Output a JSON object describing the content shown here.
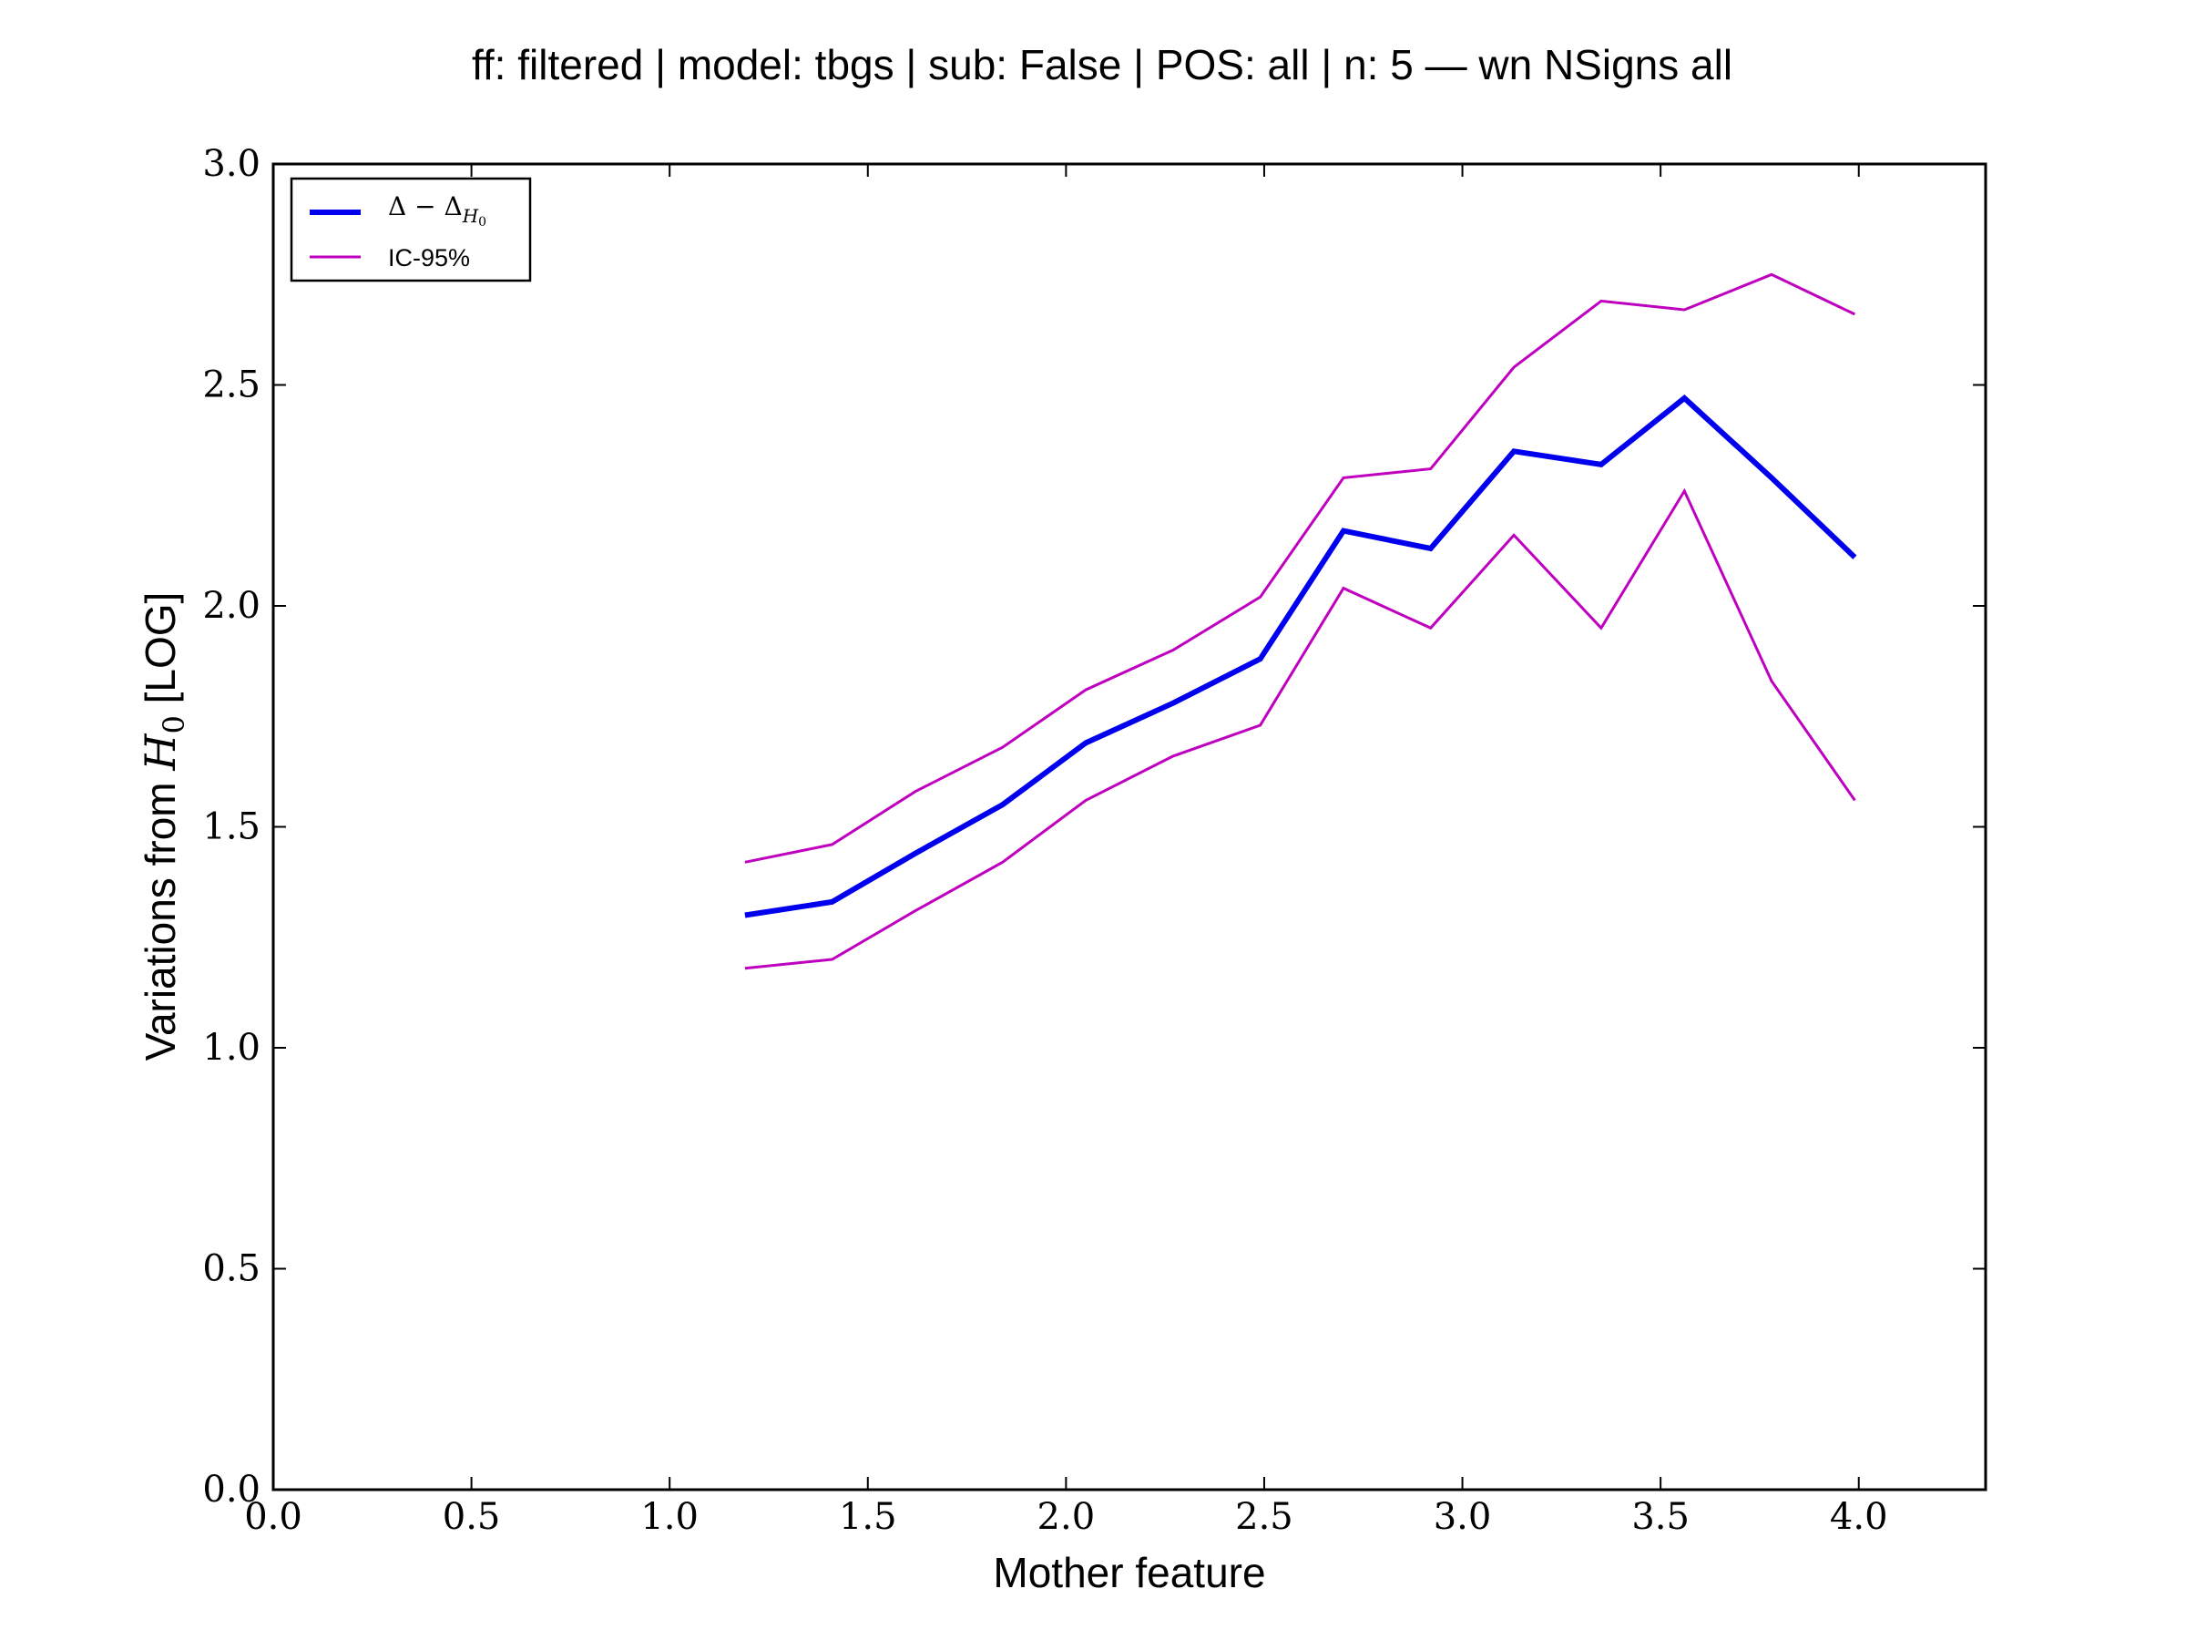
{
  "chart_data": {
    "type": "line",
    "title": "ff: filtered | model: tbgs | sub: False | POS: all | n: 5 — wn NSigns all",
    "xlabel": "Mother feature",
    "ylabel_prefix": "Variations from ",
    "ylabel_symbol": "H",
    "ylabel_subscript": "0",
    "ylabel_suffix": " [LOG]",
    "xlim": [
      0.0,
      4.32
    ],
    "ylim": [
      0.0,
      3.0
    ],
    "xticks": [
      0.0,
      0.5,
      1.0,
      1.5,
      2.0,
      2.5,
      3.0,
      3.5,
      4.0
    ],
    "xtick_labels": [
      "0.0",
      "0.5",
      "1.0",
      "1.5",
      "2.0",
      "2.5",
      "3.0",
      "3.5",
      "4.0"
    ],
    "yticks": [
      0.0,
      0.5,
      1.0,
      1.5,
      2.0,
      2.5,
      3.0
    ],
    "ytick_labels": [
      "0.0",
      "0.5",
      "1.0",
      "1.5",
      "2.0",
      "2.5",
      "3.0"
    ],
    "grid": false,
    "legend_position": "top-left",
    "x": [
      1.19,
      1.41,
      1.62,
      1.84,
      2.05,
      2.27,
      2.49,
      2.7,
      2.92,
      3.13,
      3.35,
      3.56,
      3.78,
      3.99
    ],
    "series": [
      {
        "legend_base": "Δ − Δ",
        "legend_subscript": "H",
        "legend_subsubscript": "0",
        "color": "#0000ee",
        "width": 6,
        "values": [
          1.3,
          1.33,
          1.44,
          1.55,
          1.69,
          1.78,
          1.88,
          2.17,
          2.13,
          2.35,
          2.32,
          2.47,
          2.29,
          2.11
        ]
      },
      {
        "name": "IC-95%",
        "color": "#bf00bf",
        "width": 3,
        "values": [
          1.42,
          1.46,
          1.58,
          1.68,
          1.81,
          1.9,
          2.02,
          2.29,
          2.31,
          2.54,
          2.69,
          2.67,
          2.75,
          2.66
        ]
      },
      {
        "color": "#bf00bf",
        "width": 3,
        "values": [
          1.18,
          1.2,
          1.31,
          1.42,
          1.56,
          1.66,
          1.73,
          2.04,
          1.95,
          2.16,
          1.95,
          2.26,
          1.83,
          1.56
        ]
      }
    ]
  }
}
